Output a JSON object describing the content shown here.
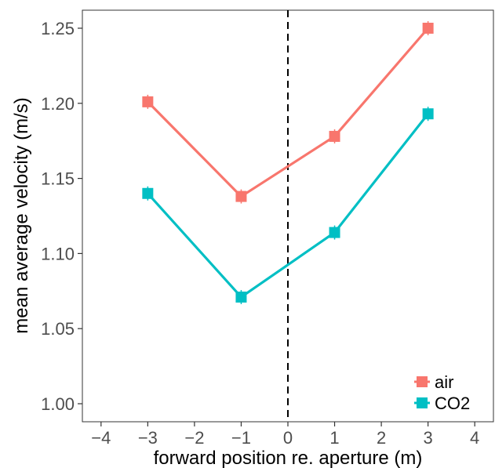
{
  "chart_data": {
    "type": "line",
    "xlabel": "forward position re. aperture (m)",
    "ylabel": "mean average velocity (m/s)",
    "xlim": [
      -4.4,
      4.4
    ],
    "ylim": [
      0.988,
      1.262
    ],
    "x_ticks": [
      -4,
      -3,
      -2,
      -1,
      0,
      1,
      2,
      3,
      4
    ],
    "x_tick_labels": [
      "−4",
      "−3",
      "−2",
      "−1",
      "0",
      "1",
      "2",
      "3",
      "4"
    ],
    "y_ticks": [
      1.0,
      1.05,
      1.1,
      1.15,
      1.2,
      1.25
    ],
    "y_tick_labels": [
      "1.00",
      "1.05",
      "1.10",
      "1.15",
      "1.20",
      "1.25"
    ],
    "grid": false,
    "reference_line": {
      "x": 0,
      "style": "dashed"
    },
    "legend_position": "bottom-right",
    "series": [
      {
        "name": "air",
        "color": "#F8766D",
        "x": [
          -3,
          -1,
          1,
          3
        ],
        "values": [
          1.201,
          1.138,
          1.178,
          1.25
        ]
      },
      {
        "name": "CO2",
        "color": "#00BFC4",
        "x": [
          -3,
          -1,
          1,
          3
        ],
        "values": [
          1.14,
          1.071,
          1.114,
          1.193
        ]
      }
    ]
  }
}
